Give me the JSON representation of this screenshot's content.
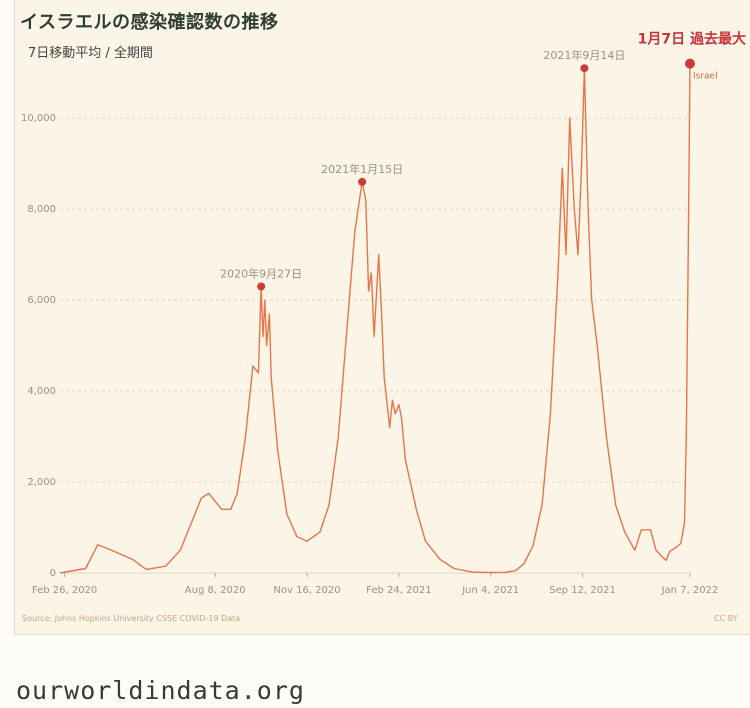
{
  "title": "イスラエルの感染確認数の推移",
  "subtitle": "7日移動平均 / 全期間",
  "source": "Source: Johns Hopkins University CSSE COVID-19 Data",
  "license": "CC BY",
  "footer": "ourworldindata.org",
  "colors": {
    "line": "#e8754a",
    "marker": "#d03a3a",
    "grid": "#e3d7c5",
    "highlight": "#c8323a"
  },
  "chart_data": {
    "type": "line",
    "title": "イスラエルの感染確認数の推移",
    "subtitle": "7日移動平均 / 全期間",
    "xlabel": "",
    "ylabel": "",
    "ylim": [
      0,
      11500
    ],
    "xlim": [
      "2020-02-21",
      "2022-01-07"
    ],
    "grid": true,
    "y_ticks": [
      0,
      2000,
      4000,
      6000,
      8000,
      10000
    ],
    "y_tick_labels": [
      "0",
      "2,000",
      "4,000",
      "6,000",
      "8,000",
      "10,000"
    ],
    "x_ticks": [
      "2020-02-26",
      "2020-08-08",
      "2020-11-16",
      "2021-02-24",
      "2021-06-04",
      "2021-09-12",
      "2022-01-07"
    ],
    "x_tick_labels": [
      "Feb 26, 2020",
      "Aug 8, 2020",
      "Nov 16, 2020",
      "Feb 24, 2021",
      "Jun 4, 2021",
      "Sep 12, 2021",
      "Jan 7, 2022"
    ],
    "series": [
      {
        "name": "Israel",
        "x": [
          "2020-02-21",
          "2020-03-20",
          "2020-04-02",
          "2020-04-10",
          "2020-04-25",
          "2020-05-10",
          "2020-05-25",
          "2020-06-15",
          "2020-07-01",
          "2020-07-15",
          "2020-07-24",
          "2020-08-01",
          "2020-08-15",
          "2020-08-25",
          "2020-09-01",
          "2020-09-10",
          "2020-09-18",
          "2020-09-24",
          "2020-09-27",
          "2020-09-29",
          "2020-10-01",
          "2020-10-03",
          "2020-10-06",
          "2020-10-08",
          "2020-10-15",
          "2020-10-25",
          "2020-11-05",
          "2020-11-16",
          "2020-11-30",
          "2020-12-10",
          "2020-12-20",
          "2020-12-30",
          "2021-01-07",
          "2021-01-15",
          "2021-01-19",
          "2021-01-22",
          "2021-01-25",
          "2021-01-28",
          "2021-02-02",
          "2021-02-05",
          "2021-02-08",
          "2021-02-14",
          "2021-02-17",
          "2021-02-20",
          "2021-02-24",
          "2021-02-27",
          "2021-03-03",
          "2021-03-15",
          "2021-03-25",
          "2021-04-10",
          "2021-04-25",
          "2021-05-15",
          "2021-06-04",
          "2021-06-20",
          "2021-07-01",
          "2021-07-10",
          "2021-07-20",
          "2021-07-30",
          "2021-08-08",
          "2021-08-16",
          "2021-08-21",
          "2021-08-25",
          "2021-08-29",
          "2021-09-03",
          "2021-09-07",
          "2021-09-11",
          "2021-09-14",
          "2021-09-18",
          "2021-09-22",
          "2021-09-28",
          "2021-10-08",
          "2021-10-18",
          "2021-10-28",
          "2021-11-08",
          "2021-11-15",
          "2021-11-25",
          "2021-12-01",
          "2021-12-05",
          "2021-12-08",
          "2021-12-12",
          "2021-12-16",
          "2021-12-22",
          "2021-12-28",
          "2022-01-01",
          "2022-01-03",
          "2022-01-05",
          "2022-01-07"
        ],
        "values": [
          0,
          100,
          620,
          560,
          430,
          300,
          80,
          150,
          500,
          1200,
          1650,
          1750,
          1400,
          1400,
          1750,
          3000,
          4550,
          4400,
          6300,
          5200,
          6000,
          5000,
          5700,
          4300,
          2700,
          1300,
          800,
          700,
          900,
          1500,
          3000,
          5500,
          7500,
          8600,
          8200,
          6200,
          6600,
          5200,
          7000,
          5800,
          4300,
          3200,
          3800,
          3500,
          3700,
          3400,
          2500,
          1400,
          700,
          300,
          100,
          20,
          10,
          15,
          50,
          200,
          600,
          1500,
          3500,
          6500,
          8900,
          7000,
          10000,
          8000,
          7000,
          9000,
          11100,
          8000,
          6000,
          5000,
          3000,
          1500,
          900,
          500,
          950,
          950,
          500,
          420,
          350,
          280,
          480,
          550,
          650,
          1100,
          3000,
          7000,
          11200
        ]
      }
    ],
    "annotations": [
      {
        "x": "2020-09-27",
        "y": 6300,
        "label": "2020年9月27日"
      },
      {
        "x": "2021-01-15",
        "y": 8600,
        "label": "2021年1月15日"
      },
      {
        "x": "2021-09-14",
        "y": 11100,
        "label": "2021年9月14日"
      },
      {
        "x": "2022-01-07",
        "y": 11200,
        "label": "1月7日 過去最大",
        "highlight": true
      }
    ],
    "series_label": "Israel"
  }
}
